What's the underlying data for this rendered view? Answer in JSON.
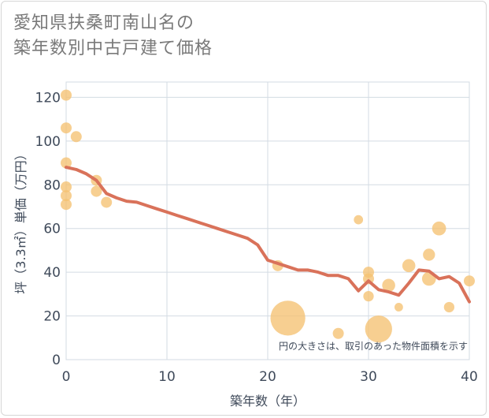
{
  "chart_data": {
    "type": "scatter",
    "title_lines": [
      "愛知県扶桑町南山名の",
      "築年数別中古戸建て価格"
    ],
    "xlabel": "築年数（年）",
    "ylabel": "坪（3.3㎡）単価（万円）",
    "xlim": [
      0,
      40
    ],
    "ylim": [
      0,
      127
    ],
    "xticks": [
      0,
      10,
      20,
      30,
      40
    ],
    "yticks": [
      0,
      20,
      40,
      60,
      80,
      100,
      120
    ],
    "grid": true,
    "note": "円の大きさは、取引のあった物件面積を示す",
    "colors": {
      "bubble": "#f5c272",
      "line": "#d9725a",
      "grid": "#d3dbe3"
    },
    "bubbles": [
      {
        "x": 0,
        "y": 121,
        "size": 1
      },
      {
        "x": 0,
        "y": 106,
        "size": 1
      },
      {
        "x": 1,
        "y": 102,
        "size": 1
      },
      {
        "x": 0,
        "y": 90,
        "size": 1
      },
      {
        "x": 3,
        "y": 82,
        "size": 1
      },
      {
        "x": 0,
        "y": 79,
        "size": 1
      },
      {
        "x": 3,
        "y": 77,
        "size": 1
      },
      {
        "x": 0,
        "y": 75,
        "size": 1
      },
      {
        "x": 4,
        "y": 72,
        "size": 1
      },
      {
        "x": 0,
        "y": 71,
        "size": 1
      },
      {
        "x": 21,
        "y": 43,
        "size": 1
      },
      {
        "x": 22,
        "y": 19,
        "size": 10
      },
      {
        "x": 27,
        "y": 12,
        "size": 1
      },
      {
        "x": 29,
        "y": 64,
        "size": 0.7
      },
      {
        "x": 30,
        "y": 40,
        "size": 1
      },
      {
        "x": 30,
        "y": 37,
        "size": 1
      },
      {
        "x": 30,
        "y": 29,
        "size": 0.9
      },
      {
        "x": 31,
        "y": 14,
        "size": 6
      },
      {
        "x": 32,
        "y": 34,
        "size": 1.4
      },
      {
        "x": 33,
        "y": 24,
        "size": 0.6
      },
      {
        "x": 34,
        "y": 43,
        "size": 1.4
      },
      {
        "x": 36,
        "y": 48,
        "size": 1.2
      },
      {
        "x": 36,
        "y": 37,
        "size": 1.6
      },
      {
        "x": 37,
        "y": 60,
        "size": 1.6
      },
      {
        "x": 38,
        "y": 24,
        "size": 0.9
      },
      {
        "x": 40,
        "y": 36,
        "size": 1
      }
    ],
    "trend": {
      "x": [
        0,
        1,
        2,
        3,
        4,
        5,
        6,
        7,
        8,
        9,
        10,
        11,
        12,
        13,
        14,
        15,
        16,
        17,
        18,
        19,
        20,
        21,
        22,
        23,
        24,
        25,
        26,
        27,
        28,
        29,
        30,
        31,
        32,
        33,
        34,
        35,
        36,
        37,
        38,
        39,
        40
      ],
      "y": [
        88,
        87,
        85,
        82,
        76,
        74,
        72.5,
        72,
        70.5,
        69,
        67.5,
        66,
        64.5,
        63,
        61.5,
        60,
        58.5,
        57,
        55.5,
        52.5,
        45.5,
        44,
        42.5,
        41,
        41,
        40,
        38.5,
        38.5,
        37,
        31.5,
        36,
        32,
        31,
        29.5,
        35,
        41,
        40.5,
        37,
        38,
        35,
        26.5
      ]
    }
  }
}
